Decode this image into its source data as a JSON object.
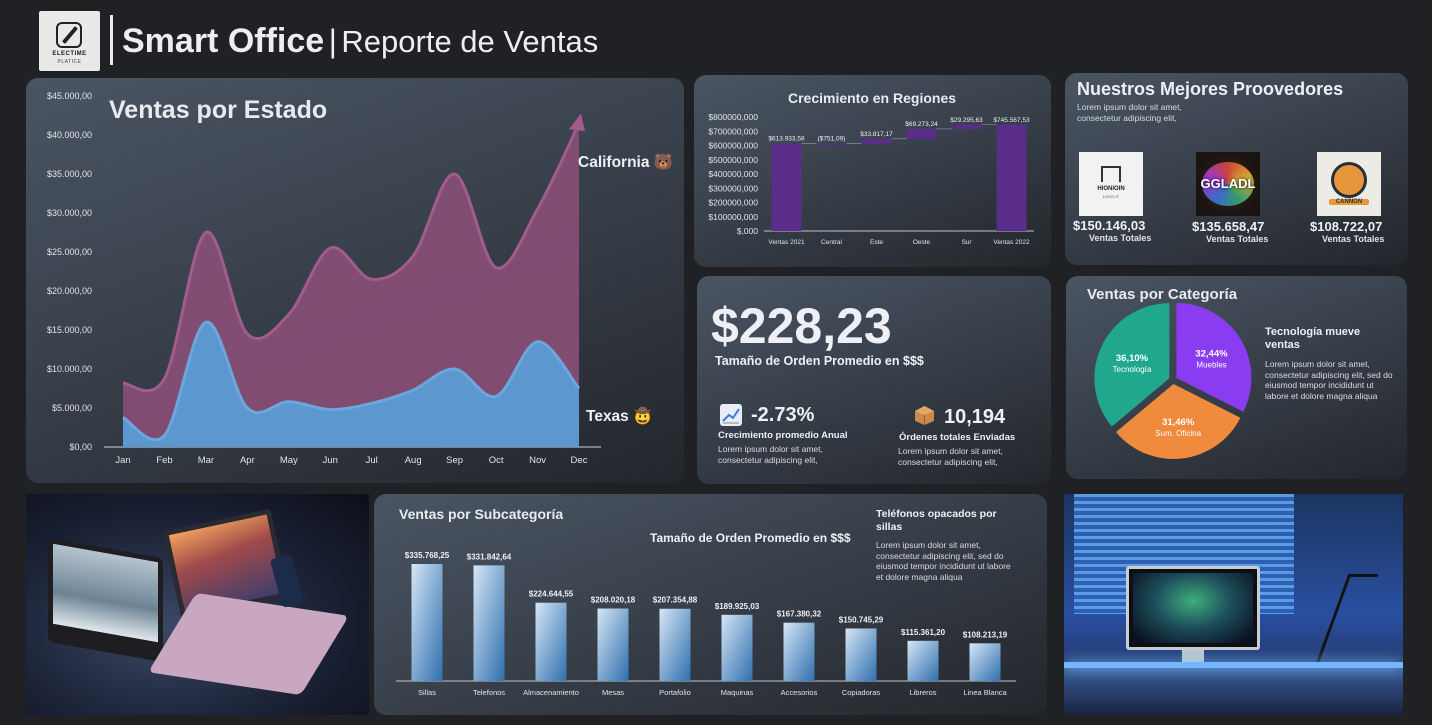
{
  "header": {
    "logo_line1": "ELECTIME",
    "logo_line2": "PLATICE",
    "title_bold": "Smart Office",
    "separator": "|",
    "title_light": "Reporte de Ventas"
  },
  "colors": {
    "background": "#202124",
    "california_fill": "#8a4f78",
    "texas_fill": "#5b9bd5",
    "waterfall_bar": "#5a2d8a",
    "pie_teal": "#20a88f",
    "pie_purple": "#8a3df0",
    "pie_orange": "#f08a3c",
    "bar_gradient_light": "#d6e6f5",
    "bar_gradient_dark": "#2f6fae"
  },
  "kpi": {
    "big_value": "$228,23",
    "big_label": "Tamaño de Orden Promedio en $$$",
    "growth_icon": "chart-up-icon",
    "growth_value": "-2.73%",
    "growth_label": "Crecimiento promedio Anual",
    "growth_desc": "Lorem ipsum dolor sit amet, consectetur adipiscing elit,",
    "orders_icon": "package-icon",
    "orders_value": "10,194",
    "orders_label": "Órdenes totales Enviadas",
    "orders_desc": "Lorem ipsum dolor sit amet, consectetur adipiscing elit,"
  },
  "suppliers": {
    "title": "Nuestros Mejores Proovedores",
    "desc": "Lorem ipsum dolor sit amet, consectetur adipiscing elit,",
    "items": [
      {
        "logo_text": "HIONIOIN",
        "logo_sub": "LOGO IT",
        "value": "$150.146,03",
        "label": "Ventas Totales"
      },
      {
        "logo_text": "GGLADL",
        "value": "$135.658,47",
        "label": "Ventas Totales"
      },
      {
        "logo_text": "CANNON",
        "value": "$108.722,07",
        "label": "Ventas Totales"
      }
    ]
  },
  "category_note": {
    "title": "Tecnología mueve ventas",
    "desc": "Lorem ipsum dolor sit amet, consectetur adipiscing elit, sed do eiusmod tempor incididunt ut labore et dolore magna aliqua"
  },
  "sub_note": {
    "overlay_title": "Tamaño de Orden Promedio en $$$",
    "title": "Teléfonos opacados por sillas",
    "desc": "Lorem ipsum dolor sit amet, consectetur adipiscing elit, sed do eiusmod tempor incididunt ut labore et dolore magna aliqua"
  },
  "chart_data": [
    {
      "type": "area",
      "title": "Ventas por Estado",
      "categories": [
        "Jan",
        "Feb",
        "Mar",
        "Apr",
        "May",
        "Jun",
        "Jul",
        "Aug",
        "Sep",
        "Oct",
        "Nov",
        "Dec"
      ],
      "y_ticks": [
        "$0,00",
        "$5.000,00",
        "$10.000,00",
        "$15.000,00",
        "$20.000,00",
        "$25.000,00",
        "$30.000,00",
        "$35.000,00",
        "$40.000,00",
        "$45.000,00"
      ],
      "ylim": [
        0,
        45000
      ],
      "series": [
        {
          "name": "California",
          "emoji": "🐻",
          "values": [
            8200,
            8800,
            27500,
            14500,
            17000,
            25500,
            21500,
            24500,
            35000,
            23000,
            30500,
            41500
          ]
        },
        {
          "name": "Texas",
          "emoji": "🤠",
          "values": [
            3800,
            1500,
            16000,
            5000,
            5800,
            4800,
            5600,
            7300,
            10000,
            6500,
            13500,
            7500
          ]
        }
      ]
    },
    {
      "type": "bar",
      "subtype": "waterfall",
      "title": "Crecimiento en Regiones",
      "categories": [
        "Ventas 2021",
        "Central",
        "Este",
        "Oeste",
        "Sur",
        "Ventas 2022"
      ],
      "values": [
        613933.58,
        -751.09,
        33817.17,
        69273.24,
        29295.63,
        745567.53
      ],
      "labels": [
        "$613.933,58",
        "($751,09)",
        "$33.817,17",
        "$69.273,24",
        "$29.295,63",
        "$745.567,53"
      ],
      "y_ticks": [
        "$,000",
        "$100000,000",
        "$200000,000",
        "$300000,000",
        "$400000,000",
        "$500000,000",
        "$600000,000",
        "$700000,000",
        "$800000,000"
      ],
      "ylim": [
        0,
        800000
      ]
    },
    {
      "type": "pie",
      "title": "Ventas por Categoría",
      "categories": [
        "Muebles",
        "Sum. Oficina",
        "Tecnología"
      ],
      "values": [
        32.44,
        31.46,
        36.1
      ],
      "labels": [
        "32,44%",
        "31,46%",
        "36,10%"
      ]
    },
    {
      "type": "bar",
      "title": "Ventas por Subcategoría",
      "categories": [
        "Sillas",
        "Telefonos",
        "Almacenamiento",
        "Mesas",
        "Portafolio",
        "Maquinas",
        "Accesorios",
        "Copiadoras",
        "Libreros",
        "Linea Blanca"
      ],
      "values": [
        335768.25,
        331842.64,
        224644.55,
        208020.18,
        207354.88,
        189925.03,
        167380.32,
        150745.29,
        115361.2,
        108213.19
      ],
      "labels": [
        "$335.768,25",
        "$331.842,64",
        "$224.644,55",
        "$208.020,18",
        "$207.354,88",
        "$189.925,03",
        "$167.380,32",
        "$150.745,29",
        "$115.361,20",
        "$108.213,19"
      ]
    }
  ]
}
